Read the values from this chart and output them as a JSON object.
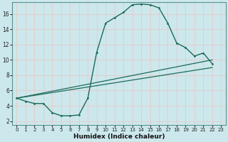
{
  "xlabel": "Humidex (Indice chaleur)",
  "ylabel": "",
  "bg_color": "#cce8ec",
  "grid_color_v": "#e8c8c8",
  "grid_color_h": "#e8c8c8",
  "line_color": "#1a6b5a",
  "xlim": [
    -0.5,
    23.5
  ],
  "ylim": [
    1.5,
    17.5
  ],
  "yticks": [
    2,
    4,
    6,
    8,
    10,
    12,
    14,
    16
  ],
  "xticks": [
    0,
    1,
    2,
    3,
    4,
    5,
    6,
    7,
    8,
    9,
    10,
    11,
    12,
    13,
    14,
    15,
    16,
    17,
    18,
    19,
    20,
    21,
    22,
    23
  ],
  "line1_x": [
    0,
    1,
    2,
    3,
    4,
    5,
    6,
    7,
    8,
    9,
    10,
    11,
    12,
    13,
    14,
    15,
    16,
    17,
    18,
    19,
    20,
    21,
    22
  ],
  "line1_y": [
    5.0,
    4.6,
    4.3,
    4.3,
    3.1,
    2.7,
    2.7,
    2.8,
    5.0,
    11.0,
    14.8,
    15.5,
    16.2,
    17.2,
    17.3,
    17.2,
    16.8,
    14.8,
    12.2,
    11.6,
    10.5,
    10.9,
    9.5
  ],
  "line2_x": [
    0,
    22
  ],
  "line2_y": [
    5.0,
    10.0
  ],
  "line3_x": [
    0,
    22
  ],
  "line3_y": [
    5.0,
    9.0
  ]
}
